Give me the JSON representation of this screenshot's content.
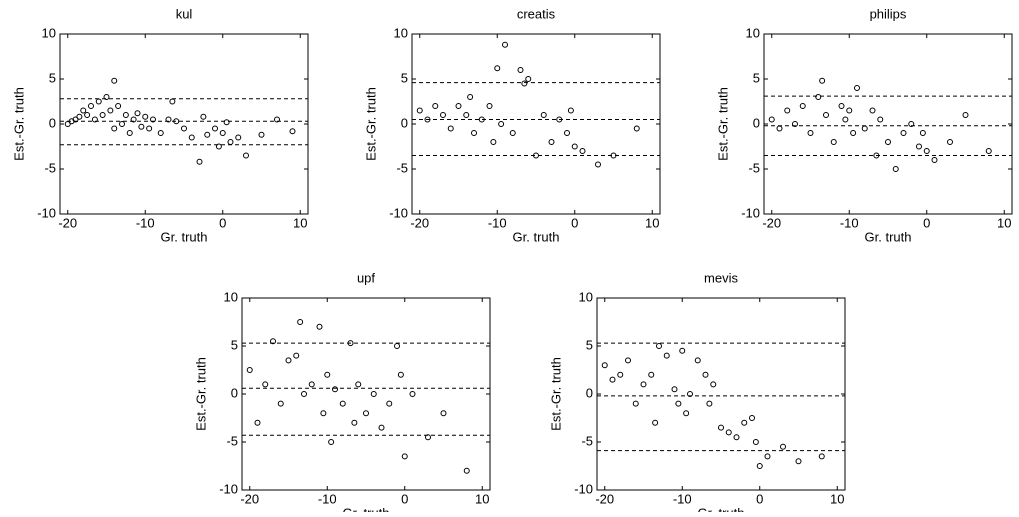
{
  "chart_data": [
    {
      "type": "scatter",
      "title": "kul",
      "xlabel": "Gr. truth",
      "ylabel": "Est.-Gr. truth",
      "color": "#000000",
      "x": [
        -20,
        -19.5,
        -19,
        -18.5,
        -18,
        -17.5,
        -17,
        -16.5,
        -16,
        -15.5,
        -15,
        -14.5,
        -14,
        -14,
        -13.5,
        -13,
        -12.5,
        -12,
        -11.5,
        -11,
        -10.5,
        -10,
        -9.5,
        -9,
        -8,
        -7,
        -6.5,
        -6,
        -5,
        -4,
        -3,
        -2.5,
        -2,
        -1,
        -0.5,
        0,
        0.5,
        1,
        2,
        3,
        5,
        7,
        9
      ],
      "values": [
        0,
        0.3,
        0.5,
        0.8,
        1.5,
        1,
        2,
        0.5,
        2.5,
        1,
        3,
        1.5,
        4.8,
        -0.5,
        2,
        0,
        1,
        -1,
        0.5,
        1.2,
        -0.3,
        0.8,
        -0.5,
        0.5,
        -1,
        0.5,
        2.5,
        0.3,
        -0.5,
        -1.5,
        -4.2,
        0.8,
        -1.2,
        -0.5,
        -2.5,
        -1,
        0.2,
        -2,
        -1.5,
        -3.5,
        -1.2,
        0.5,
        -0.8
      ],
      "hlines": [
        2.8,
        0.3,
        -2.3
      ],
      "xlim": [
        -21,
        11
      ],
      "ylim": [
        -10,
        10
      ],
      "xticks": [
        -20,
        -10,
        0,
        10
      ],
      "yticks": [
        -10,
        -5,
        0,
        5,
        10
      ]
    },
    {
      "type": "scatter",
      "title": "creatis",
      "xlabel": "Gr. truth",
      "ylabel": "Est.-Gr. truth",
      "color": "#000000",
      "x": [
        -20,
        -19,
        -18,
        -17,
        -16,
        -15,
        -14,
        -13.5,
        -13,
        -12,
        -11,
        -10.5,
        -10,
        -9.5,
        -9,
        -8,
        -7,
        -6.5,
        -6,
        -5,
        -4,
        -3,
        -2,
        -1,
        -0.5,
        0,
        1,
        3,
        5,
        8
      ],
      "values": [
        1.5,
        0.5,
        2,
        1,
        -0.5,
        2,
        1,
        3,
        -1,
        0.5,
        2,
        -2,
        6.2,
        0,
        8.8,
        -1,
        6,
        4.5,
        5,
        -3.5,
        1,
        -2,
        0.5,
        -1,
        1.5,
        -2.5,
        -3,
        -4.5,
        -3.5,
        -0.5
      ],
      "hlines": [
        4.6,
        0.5,
        -3.5
      ],
      "xlim": [
        -21,
        11
      ],
      "ylim": [
        -10,
        10
      ],
      "xticks": [
        -20,
        -10,
        0,
        10
      ],
      "yticks": [
        -10,
        -5,
        0,
        5,
        10
      ]
    },
    {
      "type": "scatter",
      "title": "philips",
      "xlabel": "Gr. truth",
      "ylabel": "Est.-Gr. truth",
      "color": "#000000",
      "x": [
        -20,
        -19,
        -18,
        -17,
        -16,
        -15,
        -14,
        -13.5,
        -13,
        -12,
        -11,
        -10.5,
        -10,
        -9.5,
        -9,
        -8,
        -7,
        -6.5,
        -6,
        -5,
        -4,
        -3,
        -2,
        -1,
        -0.5,
        0,
        1,
        3,
        5,
        8
      ],
      "values": [
        0.5,
        -0.5,
        1.5,
        0,
        2,
        -1,
        3,
        4.8,
        1,
        -2,
        2,
        0.5,
        1.5,
        -1,
        4,
        -0.5,
        1.5,
        -3.5,
        0.5,
        -2,
        -5,
        -1,
        0,
        -2.5,
        -1,
        -3,
        -4,
        -2,
        1,
        -3
      ],
      "hlines": [
        3.1,
        -0.2,
        -3.5
      ],
      "xlim": [
        -21,
        11
      ],
      "ylim": [
        -10,
        10
      ],
      "xticks": [
        -20,
        -10,
        0,
        10
      ],
      "yticks": [
        -10,
        -5,
        0,
        5,
        10
      ]
    },
    {
      "type": "scatter",
      "title": "upf",
      "xlabel": "Gr. truth",
      "ylabel": "Est.-Gr. truth",
      "color": "#000000",
      "x": [
        -20,
        -19,
        -18,
        -17,
        -16,
        -15,
        -14,
        -13.5,
        -13,
        -12,
        -11,
        -10.5,
        -10,
        -9.5,
        -9,
        -8,
        -7,
        -6.5,
        -6,
        -5,
        -4,
        -3,
        -2,
        -1,
        -0.5,
        0,
        1,
        3,
        5,
        8
      ],
      "values": [
        2.5,
        -3,
        1,
        5.5,
        -1,
        3.5,
        4,
        7.5,
        0,
        1,
        7,
        -2,
        2,
        -5,
        0.5,
        -1,
        5.3,
        -3,
        1,
        -2,
        0,
        -3.5,
        -1,
        5,
        2,
        -6.5,
        0,
        -4.5,
        -2,
        -8
      ],
      "hlines": [
        5.3,
        0.6,
        -4.3
      ],
      "xlim": [
        -21,
        11
      ],
      "ylim": [
        -10,
        10
      ],
      "xticks": [
        -20,
        -10,
        0,
        10
      ],
      "yticks": [
        -10,
        -5,
        0,
        5,
        10
      ]
    },
    {
      "type": "scatter",
      "title": "mevis",
      "xlabel": "Gr. truth",
      "ylabel": "Est.-Gr. truth",
      "color": "#000000",
      "x": [
        -20,
        -19,
        -18,
        -17,
        -16,
        -15,
        -14,
        -13.5,
        -13,
        -12,
        -11,
        -10.5,
        -10,
        -9.5,
        -9,
        -8,
        -7,
        -6.5,
        -6,
        -5,
        -4,
        -3,
        -2,
        -1,
        -0.5,
        0,
        1,
        3,
        5,
        8
      ],
      "values": [
        3,
        1.5,
        2,
        3.5,
        -1,
        1,
        2,
        -3,
        5,
        4,
        0.5,
        -1,
        4.5,
        -2,
        0,
        3.5,
        2,
        -1,
        1,
        -3.5,
        -4,
        -4.5,
        -3,
        -2.5,
        -5,
        -7.5,
        -6.5,
        -5.5,
        -7,
        -6.5
      ],
      "hlines": [
        5.3,
        -0.2,
        -5.9
      ],
      "xlim": [
        -21,
        11
      ],
      "ylim": [
        -10,
        10
      ],
      "xticks": [
        -20,
        -10,
        0,
        10
      ],
      "yticks": [
        -10,
        -5,
        0,
        5,
        10
      ]
    }
  ]
}
